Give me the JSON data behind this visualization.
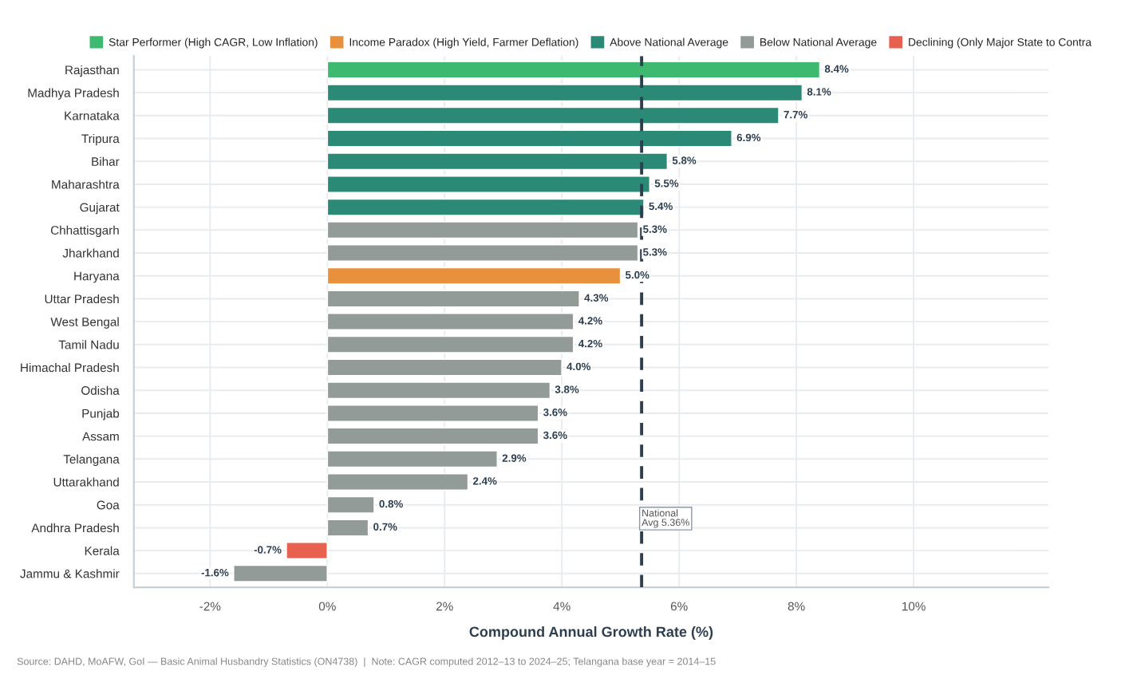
{
  "chart_data": {
    "type": "bar",
    "orientation": "horizontal",
    "xlabel": "Compound Annual Growth Rate (%)",
    "categories": [
      "Rajasthan",
      "Madhya Pradesh",
      "Karnataka",
      "Tripura",
      "Bihar",
      "Maharashtra",
      "Gujarat",
      "Chhattisgarh",
      "Jharkhand",
      "Haryana",
      "Uttar Pradesh",
      "West Bengal",
      "Tamil Nadu",
      "Himachal Pradesh",
      "Odisha",
      "Punjab",
      "Assam",
      "Telangana",
      "Uttarakhand",
      "Goa",
      "Andhra Pradesh",
      "Kerala",
      "Jammu & Kashmir"
    ],
    "series": [
      {
        "name": "Star Performer (High CAGR, Low Inflation)",
        "color": "#3dba6f",
        "values": [
          8.4,
          null,
          null,
          null,
          null,
          null,
          null,
          null,
          null,
          null,
          null,
          null,
          null,
          null,
          null,
          null,
          null,
          null,
          null,
          null,
          null,
          null,
          null
        ],
        "value_labels": [
          "8.4%",
          null,
          null,
          null,
          null,
          null,
          null,
          null,
          null,
          null,
          null,
          null,
          null,
          null,
          null,
          null,
          null,
          null,
          null,
          null,
          null,
          null,
          null
        ]
      },
      {
        "name": "Income Paradox (High Yield, Farmer Deflation)",
        "color": "#e8903c",
        "values": [
          null,
          null,
          null,
          null,
          null,
          null,
          null,
          null,
          null,
          5.0,
          null,
          null,
          null,
          null,
          null,
          null,
          null,
          null,
          null,
          null,
          null,
          null,
          null
        ],
        "value_labels": [
          null,
          null,
          null,
          null,
          null,
          null,
          null,
          null,
          null,
          "5.0%",
          null,
          null,
          null,
          null,
          null,
          null,
          null,
          null,
          null,
          null,
          null,
          null,
          null
        ]
      },
      {
        "name": "Above National Average",
        "color": "#2a8a76",
        "values": [
          null,
          8.1,
          7.7,
          6.9,
          5.8,
          5.5,
          5.4,
          null,
          null,
          null,
          null,
          null,
          null,
          null,
          null,
          null,
          null,
          null,
          null,
          null,
          null,
          null,
          null
        ],
        "value_labels": [
          null,
          "8.1%",
          "7.7%",
          "6.9%",
          "5.8%",
          "5.5%",
          "5.4%",
          null,
          null,
          null,
          null,
          null,
          null,
          null,
          null,
          null,
          null,
          null,
          null,
          null,
          null,
          null,
          null
        ]
      },
      {
        "name": "Below National Average",
        "color": "#939b98",
        "values": [
          null,
          null,
          null,
          null,
          null,
          null,
          null,
          5.3,
          5.3,
          null,
          4.3,
          4.2,
          4.2,
          4.0,
          3.8,
          3.6,
          3.6,
          2.9,
          2.4,
          0.8,
          0.7,
          null,
          -1.6
        ],
        "value_labels": [
          null,
          null,
          null,
          null,
          null,
          null,
          null,
          "5.3%",
          "5.3%",
          null,
          "4.3%",
          "4.2%",
          "4.2%",
          "4.0%",
          "3.8%",
          "3.6%",
          "3.6%",
          "2.9%",
          "2.4%",
          "0.8%",
          "0.7%",
          null,
          "-1.6%"
        ]
      },
      {
        "name": "Declining (Only Major State to Contra",
        "color": "#e8604f",
        "values": [
          null,
          null,
          null,
          null,
          null,
          null,
          null,
          null,
          null,
          null,
          null,
          null,
          null,
          null,
          null,
          null,
          null,
          null,
          null,
          null,
          null,
          -0.7,
          null
        ],
        "value_labels": [
          null,
          null,
          null,
          null,
          null,
          null,
          null,
          null,
          null,
          null,
          null,
          null,
          null,
          null,
          null,
          null,
          null,
          null,
          null,
          null,
          null,
          "-0.7%",
          null
        ]
      }
    ],
    "xlim": [
      -3.3,
      12.3
    ],
    "xticks": [
      {
        "value": -2,
        "label": "-2%"
      },
      {
        "value": 0,
        "label": "0%"
      },
      {
        "value": 2,
        "label": "2%"
      },
      {
        "value": 4,
        "label": "4%"
      },
      {
        "value": 6,
        "label": "6%"
      },
      {
        "value": 8,
        "label": "8%"
      },
      {
        "value": 10,
        "label": "10%"
      }
    ],
    "ref_lines": [
      {
        "axis": "x",
        "value": 5.36,
        "label": "National\nAvg 5.36%",
        "color": "#2c3e50",
        "line_style": "dashed"
      }
    ],
    "annotations": [
      "Source: DAHD, MoAFW, GoI — Basic Animal Husbandry Statistics (ON4738)  |  Note: CAGR computed 2012–13 to 2024–25; Telangana base year = 2014–15"
    ],
    "grid": true,
    "legend": "top"
  }
}
